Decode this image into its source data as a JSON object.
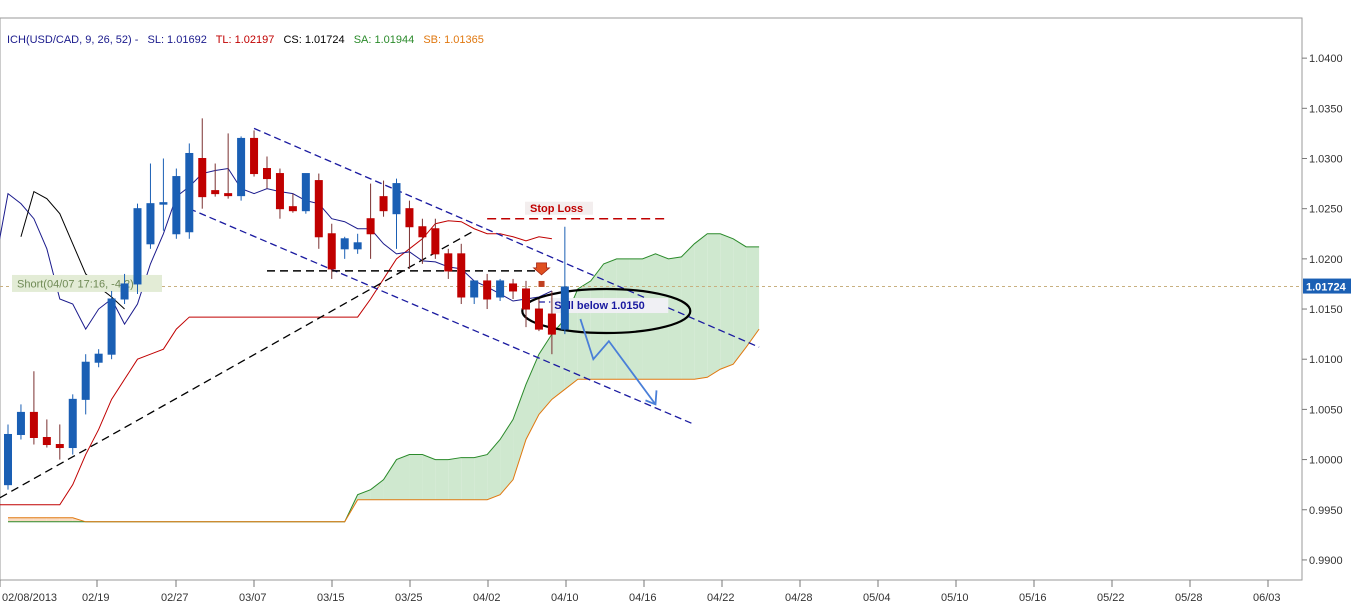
{
  "header": {
    "indicator": "ICH(USD/CAD, 9, 26, 52) -",
    "sl_label": "SL: 1.01692",
    "tl_label": "TL: 1.02197",
    "cs_label": "CS: 1.01724",
    "sa_label": "SA: 1.01944",
    "sb_label": "SB: 1.01365"
  },
  "colors": {
    "background": "#ffffff",
    "header_text": "#1a1a8c",
    "sl": "#1a1a8c",
    "tl": "#c00000",
    "cs": "#000000",
    "sa": "#2a8a2a",
    "sb": "#e07810",
    "bull_candle": "#1a5fb4",
    "bear_candle": "#c00000",
    "cloud_bull": "#cfe8cf",
    "cloud_bear": "#f9dcc4",
    "trendline_blue": "#1a1aa0",
    "price_marker": "#1a5fb4",
    "arrow_blue": "#4a7fd8"
  },
  "chart_data": {
    "type": "candlestick",
    "symbol": "USD/CAD",
    "ylim": [
      0.988,
      1.044
    ],
    "y_ticks": [
      "1.0400",
      "1.0350",
      "1.0300",
      "1.0250",
      "1.0200",
      "1.0150",
      "1.0100",
      "1.0050",
      "1.0000",
      "0.9950",
      "0.9900"
    ],
    "x_tick_labels": [
      "02/08/2013",
      "02/19",
      "02/27",
      "03/07",
      "03/15",
      "03/25",
      "04/02",
      "04/10",
      "04/16",
      "04/22",
      "04/28",
      "05/04",
      "05/10",
      "05/16",
      "05/22",
      "05/28",
      "06/03"
    ],
    "current_price": "1.01724",
    "candles": [
      {
        "o": 0.9975,
        "h": 1.0035,
        "l": 0.997,
        "c": 1.0025
      },
      {
        "o": 1.0025,
        "h": 1.0055,
        "l": 1.002,
        "c": 1.0047
      },
      {
        "o": 1.0047,
        "h": 1.0088,
        "l": 1.0015,
        "c": 1.0022
      },
      {
        "o": 1.0022,
        "h": 1.004,
        "l": 1.0012,
        "c": 1.0015
      },
      {
        "o": 1.0015,
        "h": 1.0035,
        "l": 1.0,
        "c": 1.0012
      },
      {
        "o": 1.0012,
        "h": 1.0065,
        "l": 1.0005,
        "c": 1.006
      },
      {
        "o": 1.006,
        "h": 1.0105,
        "l": 1.0045,
        "c": 1.0097
      },
      {
        "o": 1.0097,
        "h": 1.011,
        "l": 1.0092,
        "c": 1.0105
      },
      {
        "o": 1.0105,
        "h": 1.0168,
        "l": 1.01,
        "c": 1.016
      },
      {
        "o": 1.016,
        "h": 1.0185,
        "l": 1.0155,
        "c": 1.0175
      },
      {
        "o": 1.0175,
        "h": 1.0255,
        "l": 1.0165,
        "c": 1.025
      },
      {
        "o": 1.0215,
        "h": 1.0295,
        "l": 1.021,
        "c": 1.0255
      },
      {
        "o": 1.0255,
        "h": 1.03,
        "l": 1.0228,
        "c": 1.0256
      },
      {
        "o": 1.0225,
        "h": 1.029,
        "l": 1.022,
        "c": 1.0282
      },
      {
        "o": 1.0227,
        "h": 1.0315,
        "l": 1.022,
        "c": 1.0305
      },
      {
        "o": 1.03,
        "h": 1.034,
        "l": 1.025,
        "c": 1.0262
      },
      {
        "o": 1.0268,
        "h": 1.0295,
        "l": 1.0262,
        "c": 1.0265
      },
      {
        "o": 1.0265,
        "h": 1.0325,
        "l": 1.026,
        "c": 1.0263
      },
      {
        "o": 1.0263,
        "h": 1.0322,
        "l": 1.0258,
        "c": 1.032
      },
      {
        "o": 1.032,
        "h": 1.0328,
        "l": 1.0282,
        "c": 1.0285
      },
      {
        "o": 1.029,
        "h": 1.0302,
        "l": 1.027,
        "c": 1.028
      },
      {
        "o": 1.0285,
        "h": 1.029,
        "l": 1.024,
        "c": 1.025
      },
      {
        "o": 1.0252,
        "h": 1.0265,
        "l": 1.0246,
        "c": 1.0248
      },
      {
        "o": 1.0248,
        "h": 1.0285,
        "l": 1.0245,
        "c": 1.0285
      },
      {
        "o": 1.0278,
        "h": 1.0285,
        "l": 1.021,
        "c": 1.0222
      },
      {
        "o": 1.0225,
        "h": 1.0235,
        "l": 1.018,
        "c": 1.019
      },
      {
        "o": 1.021,
        "h": 1.0222,
        "l": 1.02,
        "c": 1.022
      },
      {
        "o": 1.021,
        "h": 1.0225,
        "l": 1.0205,
        "c": 1.0216
      },
      {
        "o": 1.024,
        "h": 1.0275,
        "l": 1.02,
        "c": 1.0225
      },
      {
        "o": 1.0262,
        "h": 1.0278,
        "l": 1.0242,
        "c": 1.0248
      },
      {
        "o": 1.0245,
        "h": 1.028,
        "l": 1.021,
        "c": 1.0275
      },
      {
        "o": 1.025,
        "h": 1.0258,
        "l": 1.019,
        "c": 1.0232
      },
      {
        "o": 1.0232,
        "h": 1.024,
        "l": 1.0195,
        "c": 1.0222
      },
      {
        "o": 1.023,
        "h": 1.024,
        "l": 1.02,
        "c": 1.0205
      },
      {
        "o": 1.0205,
        "h": 1.021,
        "l": 1.018,
        "c": 1.0188
      },
      {
        "o": 1.0205,
        "h": 1.0215,
        "l": 1.0155,
        "c": 1.0162
      },
      {
        "o": 1.0162,
        "h": 1.0175,
        "l": 1.0155,
        "c": 1.0178
      },
      {
        "o": 1.0178,
        "h": 1.0185,
        "l": 1.015,
        "c": 1.016
      },
      {
        "o": 1.0162,
        "h": 1.018,
        "l": 1.0158,
        "c": 1.0178
      },
      {
        "o": 1.0175,
        "h": 1.018,
        "l": 1.016,
        "c": 1.0168
      },
      {
        "o": 1.017,
        "h": 1.0178,
        "l": 1.0132,
        "c": 1.015
      },
      {
        "o": 1.015,
        "h": 1.016,
        "l": 1.0128,
        "c": 1.013
      },
      {
        "o": 1.0145,
        "h": 1.0168,
        "l": 1.0105,
        "c": 1.0125
      },
      {
        "o": 1.013,
        "h": 1.0232,
        "l": 1.0125,
        "c": 1.0172
      }
    ],
    "tenkan_line": [
      1.0195,
      1.0265,
      1.0255,
      1.024,
      1.021,
      1.016,
      1.0155,
      1.013,
      1.015,
      1.016,
      1.0135,
      1.0155,
      1.0195,
      1.0225,
      1.0262,
      1.0272,
      1.0285,
      1.0288,
      1.029,
      1.027,
      1.0265,
      1.027,
      1.0267,
      1.0265,
      1.0258,
      1.0255,
      1.024,
      1.0237,
      1.023,
      1.023,
      1.0215,
      1.0205,
      1.0207,
      1.0198,
      1.0197,
      1.0192,
      1.019,
      1.0178,
      1.0172,
      1.0165,
      1.0158,
      1.016,
      1.0162,
      1.0168
    ],
    "tenkan_x_offset": -1,
    "kijun_line": [
      0.9955,
      0.9955,
      0.9955,
      0.9955,
      0.9955,
      0.9955,
      0.9975,
      1.0005,
      1.003,
      1.006,
      1.008,
      1.01,
      1.0105,
      1.011,
      1.013,
      1.0142,
      1.0142,
      1.0142,
      1.0142,
      1.0142,
      1.0142,
      1.0142,
      1.0142,
      1.0142,
      1.0142,
      1.0142,
      1.0142,
      1.0142,
      1.0142,
      1.016,
      1.018,
      1.02,
      1.021,
      1.022,
      1.0235,
      1.0238,
      1.0237,
      1.023,
      1.0225,
      1.0225,
      1.0222,
      1.0218,
      1.0222,
      1.022
    ],
    "kijun_x_offset": -1,
    "chikou_line": [
      1.0222,
      1.0267,
      1.026,
      1.0245,
      1.0215,
      1.0185,
      1.0172,
      1.0162,
      1.015
    ],
    "chikou_x_offset": 1,
    "senkou_a_line": [
      0.9938,
      0.9938,
      0.9938,
      0.9938,
      0.9938,
      0.9938,
      0.9938,
      0.9938,
      0.9938,
      0.9938,
      0.9938,
      0.9938,
      0.9938,
      0.9938,
      0.9938,
      0.9938,
      0.9938,
      0.9938,
      0.9938,
      0.9938,
      0.9938,
      0.9938,
      0.9938,
      0.9938,
      0.9938,
      0.9938,
      0.9938,
      0.9965,
      0.997,
      0.998,
      1.0,
      1.0005,
      1.0005,
      1.0,
      1.0,
      1.0002,
      1.0002,
      1.0005,
      1.002,
      1.004,
      1.0075,
      1.0105,
      1.0125,
      1.014,
      1.017,
      1.0178,
      1.0195,
      1.02,
      1.02,
      1.02,
      1.0205,
      1.02,
      1.0202,
      1.0215,
      1.0225,
      1.0225,
      1.022,
      1.0212,
      1.0212
    ],
    "senkou_b_line": [
      0.9942,
      0.9942,
      0.9942,
      0.9942,
      0.9942,
      0.9942,
      0.9938,
      0.9938,
      0.9938,
      0.9938,
      0.9938,
      0.9938,
      0.9938,
      0.9938,
      0.9938,
      0.9938,
      0.9938,
      0.9938,
      0.9938,
      0.9938,
      0.9938,
      0.9938,
      0.9938,
      0.9938,
      0.9938,
      0.9938,
      0.9938,
      0.996,
      0.996,
      0.996,
      0.996,
      0.996,
      0.996,
      0.996,
      0.996,
      0.996,
      0.996,
      0.996,
      0.9965,
      0.998,
      1.002,
      1.0045,
      1.006,
      1.007,
      1.008,
      1.008,
      1.008,
      1.008,
      1.008,
      1.008,
      1.008,
      1.008,
      1.008,
      1.008,
      1.0082,
      1.009,
      1.0095,
      1.0112,
      1.013
    ],
    "annotations": {
      "short_label": "Short(04/07 17:16, -4.2)",
      "stop_loss_label": "Stop Loss",
      "sell_label": "Sell below 1.0150",
      "stop_loss_level": 1.024,
      "entry_level": 1.0188,
      "short_level": 1.0175,
      "sell_level": 1.015
    },
    "grid": false,
    "legend": "top-left"
  }
}
